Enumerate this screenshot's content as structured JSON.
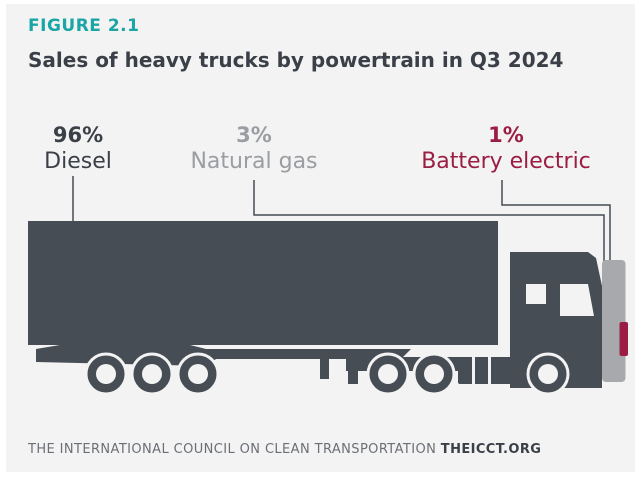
{
  "figure": {
    "number": "FIGURE 2.1",
    "title": "Sales of heavy trucks by powertrain in Q3 2024"
  },
  "colors": {
    "diesel": "#464d55",
    "natural_gas": "#a7a9ad",
    "battery_electric": "#9b1d43",
    "accent": "#1aa5a6",
    "background": "#f3f3f3"
  },
  "chart_data": {
    "type": "pictogram",
    "categories": [
      "Diesel",
      "Natural gas",
      "Battery electric"
    ],
    "values": [
      96,
      3,
      1
    ],
    "labels": [
      "96%",
      "3%",
      "1%"
    ],
    "unit": "%"
  },
  "footer": {
    "org": "THE INTERNATIONAL COUNCIL ON CLEAN TRANSPORTATION",
    "site": "THEICCT.ORG"
  }
}
